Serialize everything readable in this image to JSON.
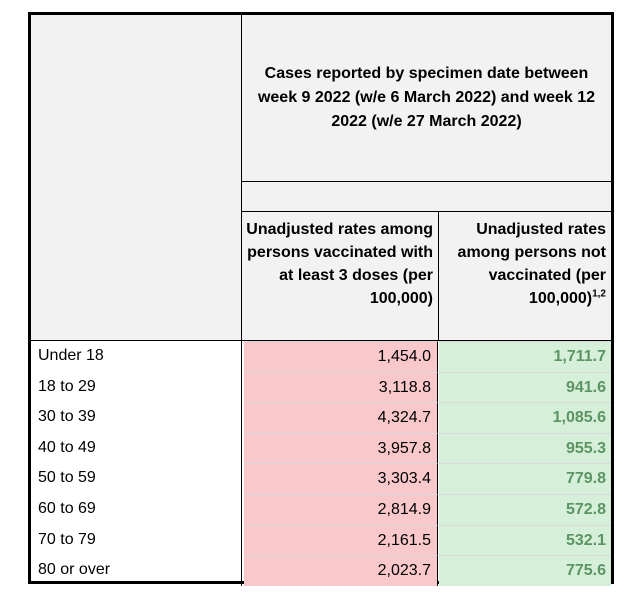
{
  "header": {
    "title": "Cases reported by specimen date between week 9 2022 (w/e 6 March 2022) and week 12 2022 (w/e 27 March 2022)",
    "col1": "Unadjusted rates among persons vaccinated with at least 3 doses (per 100,000)",
    "col2": "Unadjusted rates among persons not vaccinated (per 100,000)",
    "col2_footnote": "1,2"
  },
  "rows": [
    {
      "age": "Under 18",
      "vaccinated": "1,454.0",
      "not_vaccinated": "1,711.7"
    },
    {
      "age": "18 to 29",
      "vaccinated": "3,118.8",
      "not_vaccinated": "941.6"
    },
    {
      "age": "30 to 39",
      "vaccinated": "4,324.7",
      "not_vaccinated": "1,085.6"
    },
    {
      "age": "40 to 49",
      "vaccinated": "3,957.8",
      "not_vaccinated": "955.3"
    },
    {
      "age": "50 to 59",
      "vaccinated": "3,303.4",
      "not_vaccinated": "779.8"
    },
    {
      "age": "60 to 69",
      "vaccinated": "2,814.9",
      "not_vaccinated": "572.8"
    },
    {
      "age": "70 to 79",
      "vaccinated": "2,161.5",
      "not_vaccinated": "532.1"
    },
    {
      "age": "80 or over",
      "vaccinated": "2,023.7",
      "not_vaccinated": "775.6"
    }
  ],
  "colors": {
    "header_bg": "#f2f2f2",
    "vaccinated_bg": "#f8c8cb",
    "not_vaccinated_bg": "#d6efd9",
    "not_vaccinated_text": "#5c9463"
  }
}
